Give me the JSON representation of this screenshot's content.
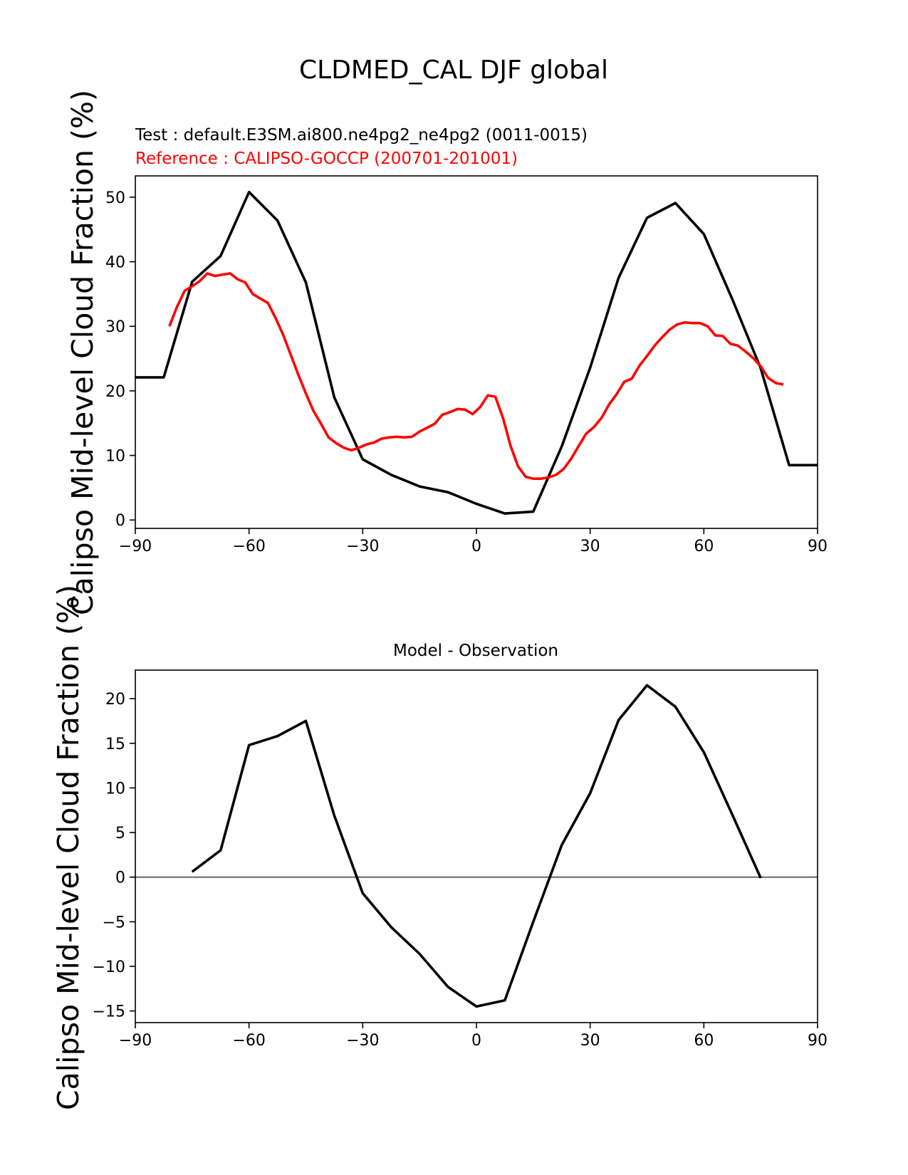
{
  "figure_title": "CLDMED_CAL DJF global",
  "colors": {
    "test": "#000000",
    "reference": "#ff0000",
    "diff": "#000000",
    "zero_line": "#808080"
  },
  "chart_data": [
    {
      "type": "line",
      "title_test": "Test : default.E3SM.ai800.ne4pg2_ne4pg2 (0011-0015)",
      "title_reference": "Reference : CALIPSO-GOCCP (200701-201001)",
      "xlabel": "",
      "ylabel": "Calipso Mid-level Cloud Fraction (%)",
      "xlim": [
        -90,
        90
      ],
      "ylim": [
        -1.3,
        53.3
      ],
      "xticks": [
        -90,
        -60,
        -30,
        0,
        30,
        60,
        90
      ],
      "xtick_labels": [
        "−90",
        "−60",
        "−30",
        "0",
        "30",
        "60",
        "90"
      ],
      "yticks": [
        0,
        10,
        20,
        30,
        40,
        50
      ],
      "ytick_labels": [
        "0",
        "10",
        "20",
        "30",
        "40",
        "50"
      ],
      "grid": false,
      "series": [
        {
          "color": "#000000",
          "x": [
            -90,
            -82.5,
            -75,
            -67.5,
            -60,
            -52.5,
            -45,
            -37.5,
            -30,
            -22.5,
            -15,
            -7.5,
            0,
            7.5,
            15,
            22.5,
            30,
            37.5,
            45,
            52.5,
            60,
            67.5,
            75,
            82.5,
            90
          ],
          "y": [
            22.1,
            22.1,
            36.9,
            40.9,
            50.8,
            46.4,
            36.8,
            19.0,
            9.4,
            7.0,
            5.2,
            4.3,
            2.5,
            1.0,
            1.3,
            11.4,
            23.6,
            37.5,
            46.8,
            49.1,
            44.3,
            34.2,
            23.5,
            8.5,
            8.5
          ]
        },
        {
          "color": "#ff0000",
          "x": [
            -81,
            -79,
            -77,
            -75,
            -73,
            -71,
            -69,
            -67,
            -65,
            -63,
            -61,
            -59,
            -57,
            -55,
            -53,
            -51,
            -49,
            -47,
            -45,
            -43,
            -41,
            -39,
            -37,
            -35,
            -33,
            -31,
            -29,
            -27,
            -25,
            -23,
            -21,
            -19,
            -17,
            -15,
            -13,
            -11,
            -9,
            -7,
            -5,
            -3,
            -1,
            1,
            3,
            5,
            7,
            9,
            11,
            13,
            15,
            17,
            19,
            21,
            23,
            25,
            27,
            29,
            31,
            33,
            35,
            37,
            39,
            41,
            43,
            45,
            47,
            49,
            51,
            53,
            55,
            57,
            59,
            61,
            63,
            65,
            67,
            69,
            71,
            73,
            75,
            77,
            79,
            81
          ],
          "y": [
            30.0,
            33.0,
            35.5,
            36.2,
            37.0,
            38.2,
            37.8,
            38.0,
            38.2,
            37.3,
            36.8,
            35.0,
            34.3,
            33.6,
            31.3,
            28.7,
            25.6,
            22.5,
            19.6,
            16.9,
            14.9,
            12.8,
            11.9,
            11.2,
            10.8,
            11.2,
            11.7,
            12.0,
            12.6,
            12.8,
            12.9,
            12.8,
            12.9,
            13.7,
            14.3,
            14.9,
            16.3,
            16.7,
            17.2,
            17.1,
            16.4,
            17.5,
            19.3,
            19.1,
            15.8,
            11.5,
            8.3,
            6.7,
            6.4,
            6.4,
            6.6,
            7.0,
            7.9,
            9.5,
            11.5,
            13.4,
            14.4,
            15.8,
            17.9,
            19.5,
            21.4,
            21.9,
            23.9,
            25.4,
            27.0,
            28.3,
            29.5,
            30.3,
            30.6,
            30.5,
            30.5,
            30.0,
            28.6,
            28.5,
            27.3,
            27.0,
            26.1,
            25.1,
            23.8,
            22.0,
            21.2,
            21.0
          ]
        }
      ]
    },
    {
      "type": "line",
      "title": "Model - Observation",
      "xlabel": "",
      "ylabel": "Calipso Mid-level Cloud Fraction (%)",
      "xlim": [
        -90,
        90
      ],
      "ylim": [
        -16.3,
        23.2
      ],
      "xticks": [
        -90,
        -60,
        -30,
        0,
        30,
        60,
        90
      ],
      "xtick_labels": [
        "−90",
        "−60",
        "−30",
        "0",
        "30",
        "60",
        "90"
      ],
      "yticks": [
        -15,
        -10,
        -5,
        0,
        5,
        10,
        15,
        20
      ],
      "ytick_labels": [
        "−15",
        "−10",
        "−5",
        "0",
        "5",
        "10",
        "15",
        "20"
      ],
      "grid": false,
      "zero_line": true,
      "series": [
        {
          "color": "#000000",
          "x": [
            -75,
            -67.5,
            -60,
            -52.5,
            -45,
            -37.5,
            -30,
            -22.5,
            -15,
            -7.5,
            0,
            7.5,
            15,
            22.5,
            30,
            37.5,
            45,
            52.5,
            60,
            67.5,
            75
          ],
          "y": [
            0.6,
            3.0,
            14.8,
            15.8,
            17.5,
            6.9,
            -1.8,
            -5.6,
            -8.6,
            -12.3,
            -14.5,
            -13.8,
            -5.0,
            3.6,
            9.4,
            17.6,
            21.5,
            19.1,
            14.0,
            7.0,
            -0.1
          ]
        }
      ]
    }
  ]
}
